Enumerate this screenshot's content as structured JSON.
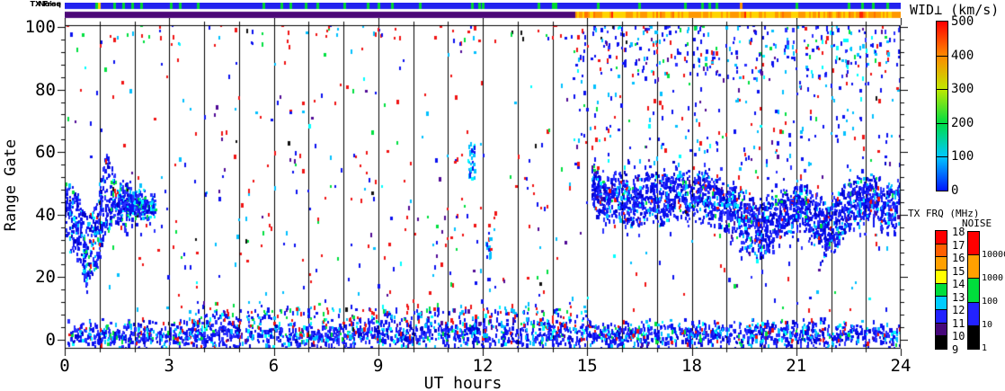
{
  "figure": {
    "xlabel": "UT hours",
    "ylabel": "Range Gate",
    "strip_labels": {
      "noise": "Noise",
      "tx_freq": "TX Freq"
    },
    "x_tick_labels": [
      "0",
      "3",
      "6",
      "9",
      "12",
      "15",
      "18",
      "21",
      "24"
    ],
    "x_tick_values": [
      0,
      3,
      6,
      9,
      12,
      15,
      18,
      21,
      24
    ],
    "y_tick_labels": [
      "0",
      "20",
      "40",
      "60",
      "80",
      "100"
    ],
    "y_tick_values": [
      0,
      20,
      40,
      60,
      80,
      100
    ]
  },
  "colorbars": {
    "wid": {
      "label": "WID⊥ (km/s)",
      "min": 0,
      "max": 500,
      "tick_labels": [
        "0",
        "100",
        "200",
        "300",
        "400",
        "500"
      ],
      "tick_values": [
        0,
        100,
        200,
        300,
        400,
        500
      ],
      "gradient_bottom_to_top": [
        "#0016ff",
        "#00c8ff",
        "#00dd44",
        "#c0e800",
        "#ff8800",
        "#ff0000"
      ]
    },
    "txfrq": {
      "label": "TX FRQ (MHz)",
      "tick_labels": [
        "9",
        "10",
        "11",
        "12",
        "13",
        "14",
        "15",
        "16",
        "17",
        "18"
      ],
      "tick_values": [
        9,
        10,
        11,
        12,
        13,
        14,
        15,
        16,
        17,
        18
      ],
      "colors_bottom_to_top": [
        "#000000",
        "#46087a",
        "#2222ff",
        "#00ccff",
        "#00dd3c",
        "#ffff00",
        "#ffa000",
        "#ff5f00",
        "#ff0000"
      ]
    },
    "noise": {
      "label": "NOISE",
      "tick_labels": [
        "1",
        "10",
        "100",
        "1000",
        "10000"
      ],
      "colors_bottom_to_top": [
        "#000000",
        "#2222ff",
        "#00dd3c",
        "#ffa000",
        "#ff0000"
      ]
    }
  },
  "strips": {
    "noise": {
      "base_color": "#2222ee",
      "marks": [
        {
          "h": 0.9,
          "c": "#00d830"
        },
        {
          "h": 0.98,
          "c": "#ffd400"
        },
        {
          "h": 1.42,
          "c": "#00d830"
        },
        {
          "h": 1.68,
          "c": "#00d830"
        },
        {
          "h": 1.94,
          "c": "#00d830"
        },
        {
          "h": 2.19,
          "c": "#00d830"
        },
        {
          "h": 3.05,
          "c": "#00d830"
        },
        {
          "h": 3.3,
          "c": "#00d830"
        },
        {
          "h": 3.82,
          "c": "#00d830"
        },
        {
          "h": 5.7,
          "c": "#00d830"
        },
        {
          "h": 6.22,
          "c": "#00d830"
        },
        {
          "h": 6.48,
          "c": "#00d830"
        },
        {
          "h": 6.92,
          "c": "#00d830"
        },
        {
          "h": 7.25,
          "c": "#00d830"
        },
        {
          "h": 8.02,
          "c": "#00d830"
        },
        {
          "h": 8.7,
          "c": "#00d830"
        },
        {
          "h": 9.0,
          "c": "#00d830"
        },
        {
          "h": 9.4,
          "c": "#00d830"
        },
        {
          "h": 10.2,
          "c": "#00d830"
        },
        {
          "h": 11.7,
          "c": "#00d830"
        },
        {
          "h": 11.9,
          "c": "#00d830"
        },
        {
          "h": 12.0,
          "c": "#00d830"
        },
        {
          "h": 13.6,
          "c": "#00d830"
        },
        {
          "h": 14.0,
          "c": "#00d830"
        },
        {
          "h": 14.1,
          "c": "#00d830"
        },
        {
          "h": 15.3,
          "c": "#00d830"
        },
        {
          "h": 16.5,
          "c": "#00d830"
        },
        {
          "h": 17.8,
          "c": "#00d830"
        },
        {
          "h": 18.3,
          "c": "#00d830"
        },
        {
          "h": 18.5,
          "c": "#00d830"
        },
        {
          "h": 18.7,
          "c": "#00d830"
        },
        {
          "h": 19.4,
          "c": "#ff9800"
        },
        {
          "h": 21.0,
          "c": "#00d830"
        },
        {
          "h": 22.5,
          "c": "#00d830"
        },
        {
          "h": 22.9,
          "c": "#00d830"
        },
        {
          "h": 23.2,
          "c": "#00d830"
        },
        {
          "h": 23.6,
          "c": "#00d830"
        }
      ]
    },
    "tx_freq": {
      "segments": [
        {
          "from": 0,
          "to": 14.66,
          "color": "#4c0878"
        },
        {
          "from": 14.66,
          "to": 24,
          "pattern": [
            [
              "#ffd400",
              0.42
            ],
            [
              "#ff9800",
              0.4
            ],
            [
              "#ff7000",
              0.14
            ],
            [
              "#ff2000",
              0.04
            ]
          ]
        }
      ]
    }
  },
  "chart_data": {
    "type": "scatter",
    "title": "",
    "xlabel": "UT hours",
    "ylabel": "Range Gate",
    "xlim": [
      0,
      24
    ],
    "ylim": [
      -3,
      103
    ],
    "x_major_tick_step": 3,
    "x_minor_tick_step": 1,
    "y_major_tick_step": 20,
    "y_minor_tick_step": 4,
    "grid": "vertical-line-every-hour",
    "legend_position": "right-colorbars",
    "seed": 1337,
    "regions": [
      {
        "name": "bottom-band",
        "kind": "band",
        "n": 2300,
        "x": [
          0.1,
          24
        ],
        "center": [
          [
            0.1,
            1.6
          ],
          [
            24,
            1.6
          ]
        ],
        "halfwidth": [
          [
            0.1,
            3.4
          ],
          [
            24,
            3.4
          ]
        ],
        "hw_jitter": 1.8,
        "tail": 0,
        "tail_depth": 0,
        "colors": [
          [
            "#0a10f0",
            0.4
          ],
          [
            "#2a30ff",
            0.22
          ],
          [
            "#0000c8",
            0.08
          ],
          [
            "#00c0ff",
            0.12
          ],
          [
            "#00ffff",
            0.06
          ],
          [
            "#00e040",
            0.05
          ],
          [
            "#f01414",
            0.05
          ],
          [
            "#500a96",
            0.02
          ]
        ]
      },
      {
        "name": "bottom-band-fringe",
        "kind": "band",
        "n": 300,
        "x": [
          3.5,
          15
        ],
        "center": [
          [
            3.5,
            7.5
          ],
          [
            15,
            7.5
          ]
        ],
        "halfwidth": [
          [
            3.5,
            3
          ],
          [
            15,
            3
          ]
        ],
        "hw_jitter": 1.5,
        "tail": 0,
        "tail_depth": 0,
        "colors": [
          [
            "#0a10f0",
            0.45
          ],
          [
            "#00c0ff",
            0.18
          ],
          [
            "#f01414",
            0.15
          ],
          [
            "#00e040",
            0.1
          ],
          [
            "#500a96",
            0.06
          ],
          [
            "#00ffff",
            0.06
          ]
        ]
      },
      {
        "name": "start-blob",
        "kind": "band",
        "n": 760,
        "x": [
          0,
          2.6
        ],
        "center": [
          [
            0,
            44
          ],
          [
            0.35,
            36
          ],
          [
            0.65,
            27
          ],
          [
            0.95,
            34
          ],
          [
            1.2,
            48
          ],
          [
            1.5,
            44
          ],
          [
            2.1,
            43
          ],
          [
            2.6,
            42
          ]
        ],
        "halfwidth": [
          [
            0,
            9
          ],
          [
            0.5,
            10
          ],
          [
            0.95,
            11
          ],
          [
            1.2,
            12
          ],
          [
            1.5,
            6
          ],
          [
            2.1,
            4
          ],
          [
            2.6,
            3
          ]
        ],
        "hw_jitter": 2,
        "tail": 0.1,
        "tail_depth": 8,
        "colors": [
          [
            "#0a10f0",
            0.42
          ],
          [
            "#2a30ff",
            0.2
          ],
          [
            "#0000c8",
            0.1
          ],
          [
            "#00c0ff",
            0.12
          ],
          [
            "#00ffff",
            0.07
          ],
          [
            "#00e040",
            0.06
          ],
          [
            "#f01414",
            0.02
          ],
          [
            "#101010",
            0.01
          ]
        ]
      },
      {
        "name": "evening-band",
        "kind": "band",
        "n": 2400,
        "x": [
          15.15,
          24
        ],
        "center": [
          [
            15.15,
            49
          ],
          [
            15.5,
            44
          ],
          [
            15.9,
            47
          ],
          [
            16.3,
            43
          ],
          [
            16.8,
            47
          ],
          [
            17.2,
            44
          ],
          [
            17.6,
            48
          ],
          [
            18.0,
            45
          ],
          [
            18.4,
            47
          ],
          [
            18.8,
            43
          ],
          [
            19.2,
            41
          ],
          [
            19.6,
            37
          ],
          [
            20.0,
            35
          ],
          [
            20.4,
            38
          ],
          [
            20.8,
            42
          ],
          [
            21.2,
            43
          ],
          [
            21.5,
            39
          ],
          [
            21.9,
            35
          ],
          [
            22.3,
            40
          ],
          [
            22.7,
            44
          ],
          [
            23.1,
            46
          ],
          [
            23.5,
            41
          ],
          [
            23.8,
            43
          ],
          [
            24,
            45
          ]
        ],
        "halfwidth": [
          [
            15.15,
            5
          ],
          [
            16,
            7
          ],
          [
            17,
            7
          ],
          [
            18,
            7
          ],
          [
            19,
            7
          ],
          [
            20,
            8
          ],
          [
            21,
            7
          ],
          [
            22,
            8
          ],
          [
            23,
            6
          ],
          [
            24,
            6
          ]
        ],
        "hw_jitter": 2.5,
        "tail": 0.22,
        "tail_depth": 12,
        "colors": [
          [
            "#0a10f0",
            0.45
          ],
          [
            "#2a30ff",
            0.25
          ],
          [
            "#0000c8",
            0.12
          ],
          [
            "#00c0ff",
            0.08
          ],
          [
            "#00ffff",
            0.04
          ],
          [
            "#500a96",
            0.02
          ],
          [
            "#f01414",
            0.02
          ],
          [
            "#00e040",
            0.02
          ]
        ]
      },
      {
        "name": "top-right-scatter",
        "kind": "topfade",
        "n": 430,
        "x": [
          14.6,
          24
        ],
        "gate_top": 103,
        "depth": 20,
        "pow": 2.0,
        "colors": [
          [
            "#0a10f0",
            0.4
          ],
          [
            "#2a30ff",
            0.12
          ],
          [
            "#00c0ff",
            0.2
          ],
          [
            "#00ffff",
            0.08
          ],
          [
            "#f01414",
            0.1
          ],
          [
            "#00e040",
            0.05
          ],
          [
            "#500a96",
            0.05
          ]
        ]
      },
      {
        "name": "upper-left-scatter",
        "kind": "uniform",
        "n": 90,
        "x": [
          0,
          14.6
        ],
        "gates": [
          94,
          103
        ],
        "colors": [
          [
            "#f01414",
            0.4
          ],
          [
            "#0a10f0",
            0.3
          ],
          [
            "#00c0ff",
            0.15
          ],
          [
            "#00e040",
            0.1
          ],
          [
            "#101010",
            0.05
          ]
        ]
      },
      {
        "name": "mid-right-scatter",
        "kind": "uniform",
        "n": 230,
        "x": [
          14.6,
          24
        ],
        "gates": [
          55,
          95
        ],
        "colors": [
          [
            "#0a10f0",
            0.45
          ],
          [
            "#00c0ff",
            0.2
          ],
          [
            "#00ffff",
            0.06
          ],
          [
            "#f01414",
            0.14
          ],
          [
            "#00e040",
            0.07
          ],
          [
            "#500a96",
            0.08
          ]
        ]
      },
      {
        "name": "sparse-scatter",
        "kind": "uniform",
        "n": 430,
        "x": [
          0,
          24
        ],
        "gates": [
          -2,
          103
        ],
        "colors": [
          [
            "#f01414",
            0.4
          ],
          [
            "#0a10f0",
            0.26
          ],
          [
            "#00c0ff",
            0.12
          ],
          [
            "#00ffff",
            0.04
          ],
          [
            "#00e040",
            0.08
          ],
          [
            "#500a96",
            0.06
          ],
          [
            "#101010",
            0.04
          ]
        ]
      },
      {
        "name": "mid-left-scatter",
        "kind": "uniform",
        "n": 130,
        "x": [
          2.6,
          14.6
        ],
        "gates": [
          5,
          60
        ],
        "colors": [
          [
            "#f01414",
            0.45
          ],
          [
            "#0a10f0",
            0.25
          ],
          [
            "#00c0ff",
            0.15
          ],
          [
            "#00e040",
            0.08
          ],
          [
            "#500a96",
            0.07
          ]
        ]
      },
      {
        "name": "noon-cyan-streak",
        "kind": "band",
        "n": 34,
        "x": [
          11.58,
          11.78
        ],
        "center": [
          [
            11.58,
            57
          ],
          [
            11.78,
            57
          ]
        ],
        "halfwidth": [
          [
            11.58,
            6
          ],
          [
            11.78,
            6
          ]
        ],
        "hw_jitter": 1,
        "tail": 0,
        "tail_depth": 0,
        "colors": [
          [
            "#00c0ff",
            0.5
          ],
          [
            "#0a10f0",
            0.3
          ],
          [
            "#00ffff",
            0.2
          ]
        ]
      },
      {
        "name": "noon-blue-streak",
        "kind": "band",
        "n": 18,
        "x": [
          12.1,
          12.25
        ],
        "center": [
          [
            12.1,
            30
          ],
          [
            12.25,
            30
          ]
        ],
        "halfwidth": [
          [
            12.1,
            4
          ],
          [
            12.25,
            4
          ]
        ],
        "hw_jitter": 1,
        "tail": 0,
        "tail_depth": 0,
        "colors": [
          [
            "#0a10f0",
            0.6
          ],
          [
            "#00c0ff",
            0.25
          ],
          [
            "#f01414",
            0.15
          ]
        ]
      }
    ]
  }
}
